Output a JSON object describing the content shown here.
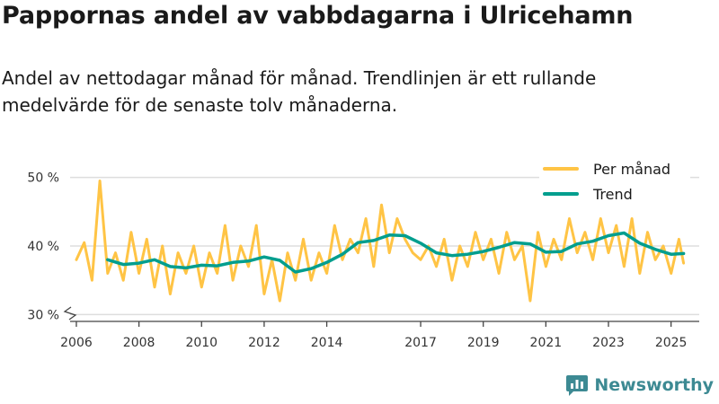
{
  "header": {
    "title": "Pappornas andel av vabbdagarna i Ulricehamn",
    "subtitle": "Andel av nettodagar månad för månad. Trendlinjen är ett rullande medelvärde för de senaste tolv månaderna."
  },
  "brand": {
    "name": "Newsworthy"
  },
  "colors": {
    "per_month": "#ffc445",
    "trend": "#009e8e",
    "grid": "#dddddd",
    "brand": "#3d8a93"
  },
  "chart_data": {
    "type": "line",
    "title": "Pappornas andel av vabbdagarna i Ulricehamn",
    "xlabel": "",
    "ylabel": "",
    "xlim": [
      2005.8,
      2025.9
    ],
    "ylim": [
      29,
      51
    ],
    "y_ticks": [
      {
        "value": 30,
        "label": "30 %"
      },
      {
        "value": 40,
        "label": "40 %"
      },
      {
        "value": 50,
        "label": "50 %"
      }
    ],
    "x_ticks": [
      {
        "value": 2006,
        "label": "2006"
      },
      {
        "value": 2008,
        "label": "2008"
      },
      {
        "value": 2010,
        "label": "2010"
      },
      {
        "value": 2012,
        "label": "2012"
      },
      {
        "value": 2014,
        "label": "2014"
      },
      {
        "value": 2017,
        "label": "2017"
      },
      {
        "value": 2019,
        "label": "2019"
      },
      {
        "value": 2021,
        "label": "2021"
      },
      {
        "value": 2023,
        "label": "2023"
      },
      {
        "value": 2025,
        "label": "2025"
      }
    ],
    "legend_position": "top-right",
    "series": [
      {
        "name": "Per månad",
        "x": [
          2006.0,
          2006.25,
          2006.5,
          2006.75,
          2007.0,
          2007.25,
          2007.5,
          2007.75,
          2008.0,
          2008.25,
          2008.5,
          2008.75,
          2009.0,
          2009.25,
          2009.5,
          2009.75,
          2010.0,
          2010.25,
          2010.5,
          2010.75,
          2011.0,
          2011.25,
          2011.5,
          2011.75,
          2012.0,
          2012.25,
          2012.5,
          2012.75,
          2013.0,
          2013.25,
          2013.5,
          2013.75,
          2014.0,
          2014.25,
          2014.5,
          2014.75,
          2015.0,
          2015.25,
          2015.5,
          2015.75,
          2016.0,
          2016.25,
          2016.5,
          2016.75,
          2017.0,
          2017.25,
          2017.5,
          2017.75,
          2018.0,
          2018.25,
          2018.5,
          2018.75,
          2019.0,
          2019.25,
          2019.5,
          2019.75,
          2020.0,
          2020.25,
          2020.5,
          2020.75,
          2021.0,
          2021.25,
          2021.5,
          2021.75,
          2022.0,
          2022.25,
          2022.5,
          2022.75,
          2023.0,
          2023.25,
          2023.5,
          2023.75,
          2024.0,
          2024.25,
          2024.5,
          2024.75,
          2025.0,
          2025.25,
          2025.4
        ],
        "values": [
          38,
          40.5,
          35,
          49.5,
          36,
          39,
          35,
          42,
          36,
          41,
          34,
          40,
          33,
          39,
          36,
          40,
          34,
          39,
          36,
          43,
          35,
          40,
          37,
          43,
          33,
          38,
          32,
          39,
          35,
          41,
          35,
          39,
          36,
          43,
          38,
          41,
          39,
          44,
          37,
          46,
          39,
          44,
          41,
          39,
          38,
          40,
          37,
          41,
          35,
          40,
          37,
          42,
          38,
          41,
          36,
          42,
          38,
          40,
          32,
          42,
          37,
          41,
          38,
          44,
          39,
          42,
          38,
          44,
          39,
          43,
          37,
          44,
          36,
          42,
          38,
          40,
          36,
          41,
          37.5
        ]
      },
      {
        "name": "Trend",
        "x": [
          2007.0,
          2007.5,
          2008.0,
          2008.5,
          2009.0,
          2009.5,
          2010.0,
          2010.5,
          2011.0,
          2011.5,
          2012.0,
          2012.5,
          2013.0,
          2013.5,
          2014.0,
          2014.5,
          2015.0,
          2015.5,
          2016.0,
          2016.5,
          2017.0,
          2017.5,
          2018.0,
          2018.5,
          2019.0,
          2019.5,
          2020.0,
          2020.5,
          2021.0,
          2021.5,
          2022.0,
          2022.5,
          2023.0,
          2023.5,
          2024.0,
          2024.5,
          2025.0,
          2025.4
        ],
        "values": [
          38,
          37.3,
          37.5,
          38,
          37,
          36.8,
          37.2,
          37.1,
          37.6,
          37.8,
          38.4,
          37.9,
          36.2,
          36.7,
          37.6,
          38.8,
          40.5,
          40.8,
          41.6,
          41.5,
          40.4,
          39,
          38.6,
          38.8,
          39.2,
          39.8,
          40.5,
          40.3,
          39.1,
          39.2,
          40.3,
          40.7,
          41.5,
          41.9,
          40.4,
          39.5,
          38.8,
          38.9
        ]
      }
    ]
  }
}
